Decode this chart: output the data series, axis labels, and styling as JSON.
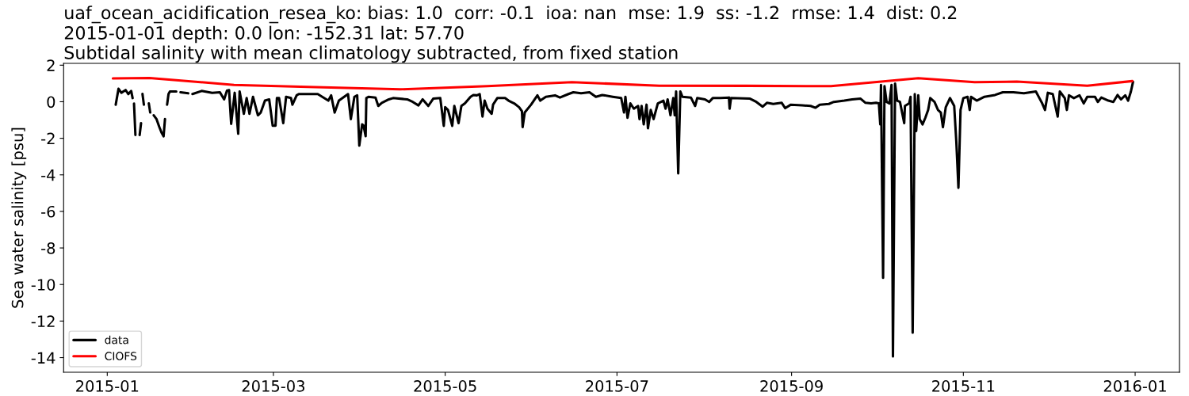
{
  "chart_data": {
    "type": "line",
    "title": "uaf_ocean_acidification_resea_ko: bias: 1.0  corr: -0.1  ioa: nan  mse: 1.9  ss: -1.2  rmse: 1.4  dist: 0.2\n2015-01-01 depth: 0.0 lon: -152.31 lat: 57.70\nSubtidal salinity with mean climatology subtracted, from fixed station",
    "ylabel": "Sea water salinity [psu]",
    "series": [
      {
        "name": "data",
        "color": "#000000",
        "x": [
          "2015-01-04T00:00",
          "2015-01-05T00:00",
          "2015-01-06T00:00",
          "2015-01-07T12:00",
          "2015-01-08T12:00",
          "2015-01-09T12:00",
          "2015-01-10T00:00",
          "2015-01-10T06:00",
          "2015-01-10T12:00",
          "2015-01-11T00:00",
          "2015-01-11T12:00",
          "2015-01-12T12:00",
          "2015-01-13T00:00",
          "2015-01-13T06:00",
          "2015-01-13T12:00",
          "2015-01-14T00:00",
          "2015-01-14T12:00",
          "2015-01-15T18:00",
          "2015-01-16T06:00",
          "2015-01-16T18:00",
          "2015-01-17T12:00",
          "2015-01-18T12:00",
          "2015-01-19T12:00",
          "2015-01-20T06:00",
          "2015-01-21T00:00",
          "2015-01-21T12:00",
          "2015-01-22T00:00",
          "2015-01-22T06:00",
          "2015-01-22T18:00",
          "2015-01-23T06:00",
          "2015-01-25T12:00",
          "2015-01-26T00:00",
          "2015-01-27T00:00",
          "2015-01-29T18:00",
          "2015-01-30T06:00",
          "2015-01-31T06:00",
          "2015-02-03T12:00",
          "2015-02-07T06:00",
          "2015-02-10T00:00",
          "2015-02-11T12:00",
          "2015-02-12T12:00",
          "2015-02-13T06:00",
          "2015-02-14T00:00",
          "2015-02-15T06:00",
          "2015-02-16T12:00",
          "2015-02-17T00:00",
          "2015-02-18T12:00",
          "2015-02-19T12:00",
          "2015-02-20T12:00",
          "2015-02-21T18:00",
          "2015-02-23T12:00",
          "2015-02-24T12:00",
          "2015-02-26T00:00",
          "2015-02-27T12:00",
          "2015-02-28T18:00",
          "2015-03-01T18:00",
          "2015-03-02T06:00",
          "2015-03-03T00:00",
          "2015-03-04T12:00",
          "2015-03-05T12:00",
          "2015-03-07T06:00",
          "2015-03-07T18:00",
          "2015-03-09T06:00",
          "2015-03-10T00:00",
          "2015-03-16T18:00",
          "2015-03-20T12:00",
          "2015-03-21T12:00",
          "2015-03-22T18:00",
          "2015-03-24T06:00",
          "2015-03-27T12:00",
          "2015-03-28T12:00",
          "2015-03-29T18:00",
          "2015-03-30T18:00",
          "2015-03-31T12:00",
          "2015-04-01T12:00",
          "2015-04-02T00:00",
          "2015-04-02T18:00",
          "2015-04-03T00:00",
          "2015-04-03T18:00",
          "2015-04-06T06:00",
          "2015-04-07T06:00",
          "2015-04-08T12:00",
          "2015-04-11T00:00",
          "2015-04-12T12:00",
          "2015-04-17T12:00",
          "2015-04-19T12:00",
          "2015-04-21T12:00",
          "2015-04-23T00:00",
          "2015-04-25T00:00",
          "2015-04-26T18:00",
          "2015-04-29T06:00",
          "2015-04-30T12:00",
          "2015-05-01T00:00",
          "2015-05-02T00:00",
          "2015-05-03T12:00",
          "2015-05-04T06:00",
          "2015-05-05T18:00",
          "2015-05-06T18:00",
          "2015-05-08T00:00",
          "2015-05-10T00:00",
          "2015-05-11T00:00",
          "2015-05-12T06:00",
          "2015-05-13T06:00",
          "2015-05-14T06:00",
          "2015-05-15T00:00",
          "2015-05-16T00:00",
          "2015-05-17T12:00",
          "2015-05-18T00:00",
          "2015-05-19T12:00",
          "2015-05-22T06:00",
          "2015-05-23T12:00",
          "2015-05-25T12:00",
          "2015-05-27T06:00",
          "2015-05-28T06:00",
          "2015-05-28T12:00",
          "2015-05-29T06:00",
          "2015-05-31T12:00",
          "2015-06-02T18:00",
          "2015-06-03T18:00",
          "2015-06-05T18:00",
          "2015-06-09T00:00",
          "2015-06-10T18:00",
          "2015-06-13T18:00",
          "2015-06-15T12:00",
          "2015-06-18T06:00",
          "2015-06-21T06:00",
          "2015-06-23T12:00",
          "2015-06-25T18:00",
          "2015-06-29T12:00",
          "2015-07-02T12:00",
          "2015-07-03T12:00",
          "2015-07-04T00:00",
          "2015-07-04T18:00",
          "2015-07-05T18:00",
          "2015-07-07T00:00",
          "2015-07-08T12:00",
          "2015-07-09T00:00",
          "2015-07-09T18:00",
          "2015-07-10T12:00",
          "2015-07-11T12:00",
          "2015-07-12T00:00",
          "2015-07-13T00:00",
          "2015-07-14T00:00",
          "2015-07-15T12:00",
          "2015-07-17T12:00",
          "2015-07-18T06:00",
          "2015-07-19T00:00",
          "2015-07-20T00:00",
          "2015-07-21T00:00",
          "2015-07-21T12:00",
          "2015-07-22T00:00",
          "2015-07-22T18:00",
          "2015-07-23T12:00",
          "2015-07-24T06:00",
          "2015-07-27T06:00",
          "2015-07-28T18:00",
          "2015-07-29T12:00",
          "2015-08-01T06:00",
          "2015-08-02T18:00",
          "2015-08-04T00:00",
          "2015-08-06T18:00",
          "2015-08-09T18:00",
          "2015-08-10T00:00",
          "2015-08-10T12:00",
          "2015-08-17T06:00",
          "2015-08-19T12:00",
          "2015-08-21T18:00",
          "2015-08-23T06:00",
          "2015-08-25T12:00",
          "2015-08-28T12:00",
          "2015-08-29T18:00",
          "2015-08-31T18:00",
          "2015-09-04T18:00",
          "2015-09-07T18:00",
          "2015-09-09T12:00",
          "2015-09-11T00:00",
          "2015-09-14T06:00",
          "2015-09-16T00:00",
          "2015-09-19T18:00",
          "2015-09-22T12:00",
          "2015-09-25T12:00",
          "2015-09-27T06:00",
          "2015-09-29T06:00",
          "2015-10-01T00:00",
          "2015-10-02T00:00",
          "2015-10-02T12:00",
          "2015-10-02T18:00",
          "2015-10-03T12:00",
          "2015-10-04T00:00",
          "2015-10-04T18:00",
          "2015-10-05T18:00",
          "2015-10-06T12:00",
          "2015-10-07T00:00",
          "2015-10-07T18:00",
          "2015-10-08T12:00",
          "2015-10-09T12:00",
          "2015-10-11T00:00",
          "2015-10-11T06:00",
          "2015-10-12T18:00",
          "2015-10-13T06:00",
          "2015-10-14T00:00",
          "2015-10-14T18:00",
          "2015-10-15T06:00",
          "2015-10-16T00:00",
          "2015-10-16T12:00",
          "2015-10-17T12:00",
          "2015-10-18T12:00",
          "2015-10-19T12:00",
          "2015-10-20T06:00",
          "2015-10-21T18:00",
          "2015-10-23T00:00",
          "2015-10-24T00:00",
          "2015-10-24T18:00",
          "2015-10-25T18:00",
          "2015-10-27T06:00",
          "2015-10-28T18:00",
          "2015-10-29T12:00",
          "2015-10-30T06:00",
          "2015-10-31T00:00",
          "2015-11-01T00:00",
          "2015-11-02T12:00",
          "2015-11-03T06:00",
          "2015-11-03T18:00",
          "2015-11-05T18:00",
          "2015-11-08T12:00",
          "2015-11-12T06:00",
          "2015-11-15T00:00",
          "2015-11-18T18:00",
          "2015-11-22T12:00",
          "2015-11-26T18:00",
          "2015-11-28T00:00",
          "2015-11-29T00:00",
          "2015-11-30T00:00",
          "2015-12-01T00:00",
          "2015-12-02T18:00",
          "2015-12-04T12:00",
          "2015-12-05T06:00",
          "2015-12-07T00:00",
          "2015-12-07T18:00",
          "2015-12-08T12:00",
          "2015-12-10T06:00",
          "2015-12-12T06:00",
          "2015-12-13T18:00",
          "2015-12-15T00:00",
          "2015-12-17T18:00",
          "2015-12-18T18:00",
          "2015-12-20T00:00",
          "2015-12-22T12:00",
          "2015-12-24T06:00",
          "2015-12-25T18:00",
          "2015-12-27T00:00",
          "2015-12-28T12:00",
          "2015-12-29T12:00",
          "2015-12-30T12:00",
          "2015-12-31T06:00"
        ],
        "values": [
          -0.16,
          0.71,
          0.49,
          0.64,
          0.42,
          0.59,
          0.2,
          null,
          -0.1,
          -1.82,
          null,
          -1.82,
          -1.17,
          null,
          0.43,
          -0.16,
          null,
          -0.09,
          -0.59,
          null,
          -0.74,
          -0.95,
          -1.39,
          -1.68,
          -1.89,
          -0.95,
          null,
          -0.16,
          0.42,
          0.56,
          0.56,
          null,
          0.52,
          0.46,
          null,
          0.42,
          0.59,
          0.49,
          0.52,
          0.13,
          0.61,
          0.64,
          -1.21,
          0.49,
          -1.75,
          0.56,
          -0.66,
          0.2,
          -0.66,
          0.27,
          -0.74,
          -0.59,
          0.06,
          0.13,
          -1.31,
          -1.31,
          0.2,
          0.2,
          -1.17,
          0.27,
          0.2,
          -0.16,
          0.35,
          0.42,
          0.42,
          0.06,
          0.35,
          -0.59,
          0.06,
          0.42,
          -0.95,
          0.27,
          0.35,
          -2.4,
          -1.24,
          -1.3,
          -1.89,
          0.2,
          0.27,
          0.23,
          -0.23,
          -0.06,
          0.13,
          0.2,
          0.13,
          -0.01,
          -0.2,
          0.13,
          -0.23,
          0.17,
          0.2,
          -1.32,
          -0.3,
          -0.45,
          -1.32,
          -0.23,
          -1.17,
          -0.23,
          -0.09,
          0.27,
          0.37,
          0.35,
          0.42,
          -0.81,
          0.06,
          -0.38,
          -0.66,
          -0.16,
          0.2,
          0.2,
          0.06,
          -0.09,
          -0.3,
          -0.52,
          -1.39,
          -0.59,
          -0.16,
          0.35,
          0.06,
          0.27,
          0.35,
          0.23,
          0.42,
          0.52,
          0.46,
          0.52,
          0.27,
          0.37,
          0.27,
          0.2,
          -0.59,
          0.27,
          -0.88,
          -0.09,
          -0.38,
          -0.23,
          -0.95,
          -0.23,
          -1.24,
          -0.16,
          -1.45,
          -0.45,
          -0.95,
          -0.09,
          0.06,
          -0.38,
          0.13,
          -0.74,
          0.2,
          -0.74,
          0.56,
          -3.92,
          0.56,
          0.27,
          0.23,
          -0.23,
          0.2,
          0.13,
          -0.01,
          0.2,
          0.2,
          0.23,
          -0.38,
          0.2,
          0.17,
          -0.01,
          -0.27,
          -0.06,
          -0.12,
          -0.06,
          -0.35,
          -0.16,
          -0.2,
          -0.23,
          -0.33,
          -0.16,
          -0.12,
          -0.01,
          0.06,
          0.13,
          0.17,
          -0.06,
          -0.09,
          -0.06,
          -0.09,
          -1.24,
          0.92,
          -9.63,
          0.85,
          -0.01,
          -0.09,
          0.92,
          -13.93,
          0.99,
          0.06,
          -0.01,
          -1.17,
          -0.23,
          -0.09,
          0.27,
          -12.63,
          0.42,
          -1.6,
          0.35,
          -0.95,
          -1.24,
          -0.88,
          -0.45,
          0.2,
          -0.01,
          -0.45,
          -0.59,
          -1.39,
          -0.3,
          0.2,
          -0.23,
          -2.18,
          -4.71,
          -0.45,
          0.2,
          0.27,
          -0.45,
          0.27,
          0.06,
          0.27,
          0.37,
          0.52,
          0.52,
          0.46,
          0.56,
          0.2,
          -0.09,
          -0.45,
          0.49,
          0.42,
          -0.81,
          0.56,
          0.2,
          -0.45,
          0.35,
          0.2,
          0.35,
          -0.09,
          0.27,
          0.27,
          -0.01,
          0.23,
          0.06,
          -0.01,
          0.37,
          0.13,
          0.35,
          0.06,
          0.56,
          1.09
        ]
      },
      {
        "name": "CIOFS",
        "color": "#ff0000",
        "x": [
          "2015-01-03",
          "2015-01-16",
          "2015-02-15",
          "2015-03-16",
          "2015-04-15",
          "2015-05-16",
          "2015-06-15",
          "2015-07-16",
          "2015-08-16",
          "2015-09-15",
          "2015-10-16",
          "2015-11-05",
          "2015-11-20",
          "2015-12-15",
          "2015-12-31"
        ],
        "values": [
          1.28,
          1.3,
          0.92,
          0.8,
          0.68,
          0.85,
          1.07,
          0.88,
          0.87,
          0.85,
          1.29,
          1.07,
          1.1,
          0.88,
          1.13
        ]
      }
    ],
    "xlim": [
      "2014-12-16T12:00",
      "2016-01-16T18:00"
    ],
    "ylim": [
      -14.8,
      2.1
    ],
    "xticks": [
      "2015-01",
      "2015-03",
      "2015-05",
      "2015-07",
      "2015-09",
      "2015-11",
      "2016-01"
    ],
    "yticks": [
      -14,
      -12,
      -10,
      -8,
      -6,
      -4,
      -2,
      0,
      2
    ],
    "legend": "bottom left",
    "line_style": "solid"
  }
}
